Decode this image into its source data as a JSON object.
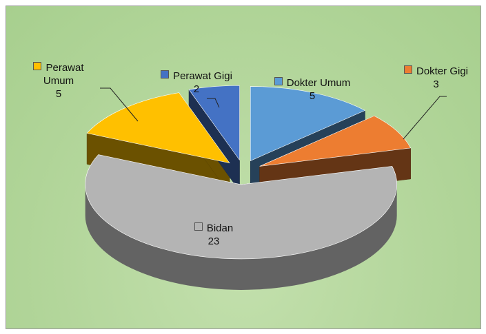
{
  "chart_data": {
    "type": "pie3d",
    "categories": [
      "Dokter Umum",
      "Dokter Gigi",
      "Bidan",
      "Perawat Umum",
      "Perawat Gigi"
    ],
    "values": [
      5,
      3,
      23,
      5,
      2
    ],
    "colors": [
      "#5b9bd5",
      "#ed7d31",
      "#b4b4b4",
      "#ffc000",
      "#4472c4"
    ]
  }
}
